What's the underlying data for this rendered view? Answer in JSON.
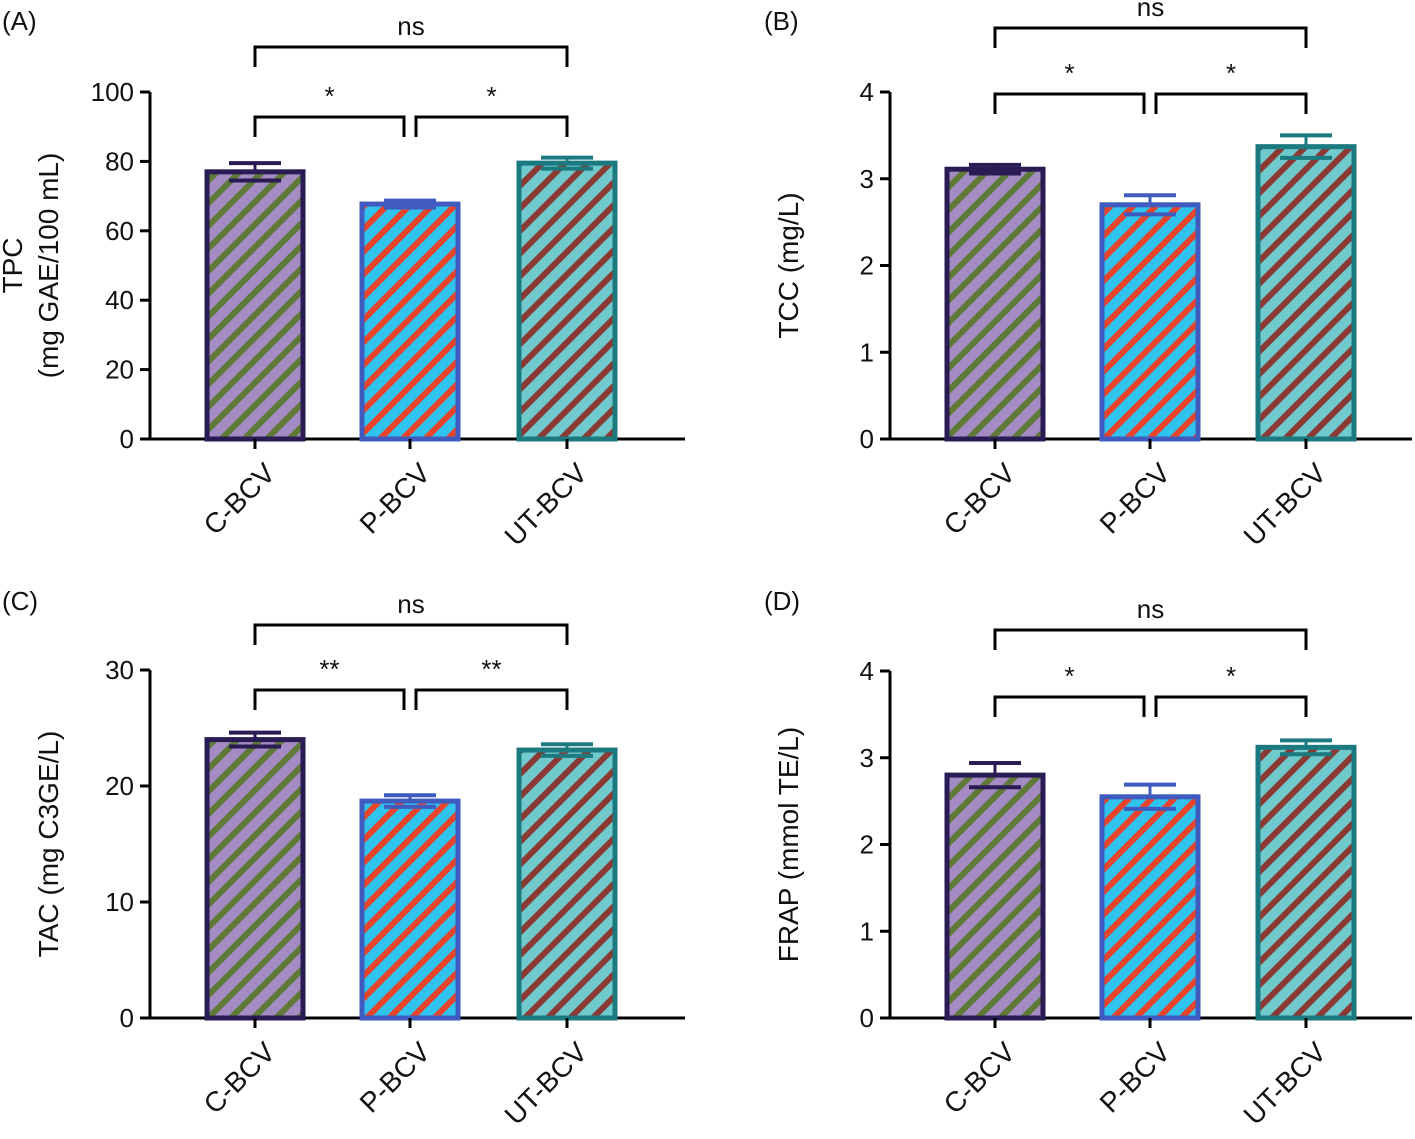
{
  "colors": {
    "C-BCV": {
      "border": "#2a1b55",
      "fill": "#a48bc4",
      "stripe": "#5e7a36"
    },
    "P-BCV": {
      "border": "#3f5bbf",
      "fill": "#2fc3ee",
      "stripe": "#e8442b"
    },
    "UT-BCV": {
      "border": "#1b7a80",
      "fill": "#70c9cc",
      "stripe": "#8b3a33"
    }
  },
  "chart_data": [
    {
      "panel": "(A)",
      "type": "bar",
      "categories": [
        "C-BCV",
        "P-BCV",
        "UT-BCV"
      ],
      "values": [
        77.0,
        67.7,
        79.5
      ],
      "errors": [
        2.5,
        1.0,
        1.6
      ],
      "ylabel": [
        "TPC",
        "(mg GAE/100 mL)"
      ],
      "ylim": [
        0,
        100
      ],
      "yticks": [
        "0",
        "20",
        "40",
        "60",
        "80",
        "100"
      ],
      "significance": [
        {
          "pair": [
            "C-BCV",
            "P-BCV"
          ],
          "label": "*"
        },
        {
          "pair": [
            "P-BCV",
            "UT-BCV"
          ],
          "label": "*"
        },
        {
          "pair": [
            "C-BCV",
            "UT-BCV"
          ],
          "label": "ns"
        }
      ]
    },
    {
      "panel": "(B)",
      "type": "bar",
      "categories": [
        "C-BCV",
        "P-BCV",
        "UT-BCV"
      ],
      "values": [
        3.11,
        2.7,
        3.37
      ],
      "errors": [
        0.05,
        0.11,
        0.13
      ],
      "ylabel": [
        "TCC (mg/L)"
      ],
      "ylim": [
        0,
        4
      ],
      "yticks": [
        "0",
        "1",
        "2",
        "3",
        "4"
      ],
      "significance": [
        {
          "pair": [
            "C-BCV",
            "P-BCV"
          ],
          "label": "*"
        },
        {
          "pair": [
            "P-BCV",
            "UT-BCV"
          ],
          "label": "*"
        },
        {
          "pair": [
            "C-BCV",
            "UT-BCV"
          ],
          "label": "ns"
        }
      ]
    },
    {
      "panel": "(C)",
      "type": "bar",
      "categories": [
        "C-BCV",
        "P-BCV",
        "UT-BCV"
      ],
      "values": [
        24.0,
        18.7,
        23.1
      ],
      "errors": [
        0.6,
        0.5,
        0.5
      ],
      "ylabel": [
        "TAC (mg C3GE/L)"
      ],
      "ylim": [
        0,
        30
      ],
      "yticks": [
        "0",
        "10",
        "20",
        "30"
      ],
      "significance": [
        {
          "pair": [
            "C-BCV",
            "P-BCV"
          ],
          "label": "**"
        },
        {
          "pair": [
            "P-BCV",
            "UT-BCV"
          ],
          "label": "**"
        },
        {
          "pair": [
            "C-BCV",
            "UT-BCV"
          ],
          "label": "ns"
        }
      ]
    },
    {
      "panel": "(D)",
      "type": "bar",
      "categories": [
        "C-BCV",
        "P-BCV",
        "UT-BCV"
      ],
      "values": [
        2.8,
        2.55,
        3.12
      ],
      "errors": [
        0.14,
        0.14,
        0.08
      ],
      "ylabel": [
        "FRAP (mmol TE/L)"
      ],
      "ylim": [
        0,
        4
      ],
      "yticks": [
        "0",
        "1",
        "2",
        "3",
        "4"
      ],
      "significance": [
        {
          "pair": [
            "C-BCV",
            "P-BCV"
          ],
          "label": "*"
        },
        {
          "pair": [
            "P-BCV",
            "UT-BCV"
          ],
          "label": "*"
        },
        {
          "pair": [
            "C-BCV",
            "UT-BCV"
          ],
          "label": "ns"
        }
      ]
    }
  ]
}
